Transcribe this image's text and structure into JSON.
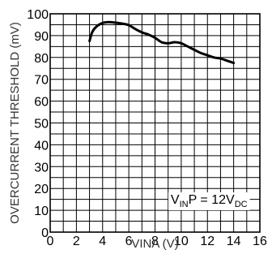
{
  "chart_data": {
    "type": "line",
    "title": "",
    "xlabel": "VINA (V)",
    "ylabel": "OVERCURRENT THRESHOLD (mV)",
    "xlim": [
      0,
      16
    ],
    "ylim": [
      0,
      100
    ],
    "x_ticks": [
      "0",
      "2",
      "4",
      "6",
      "8",
      "10",
      "12",
      "14",
      "16"
    ],
    "y_ticks": [
      "0",
      "10",
      "20",
      "30",
      "40",
      "50",
      "60",
      "70",
      "80",
      "90",
      "100"
    ],
    "grid": true,
    "x_minor_step": 1,
    "y_minor_step": 5,
    "series": [
      {
        "x": [
          3.0,
          3.2,
          3.5,
          4.0,
          4.5,
          5.0,
          5.5,
          6.0,
          6.5,
          7.0,
          7.5,
          8.0,
          8.5,
          9.0,
          9.5,
          10.0,
          10.5,
          11.0,
          11.5,
          12.0,
          12.5,
          13.0,
          13.5,
          14.0
        ],
        "y": [
          87.5,
          91.5,
          94.0,
          95.8,
          96.2,
          95.9,
          95.5,
          94.8,
          93.0,
          91.5,
          90.5,
          89.0,
          87.0,
          86.5,
          87.0,
          86.5,
          85.0,
          83.5,
          82.0,
          81.0,
          80.0,
          79.5,
          78.5,
          77.5
        ]
      }
    ],
    "annotation": {
      "parts": [
        "V",
        "IN",
        "P = 12V",
        "DC"
      ],
      "x": 9.2,
      "y": 13
    }
  }
}
